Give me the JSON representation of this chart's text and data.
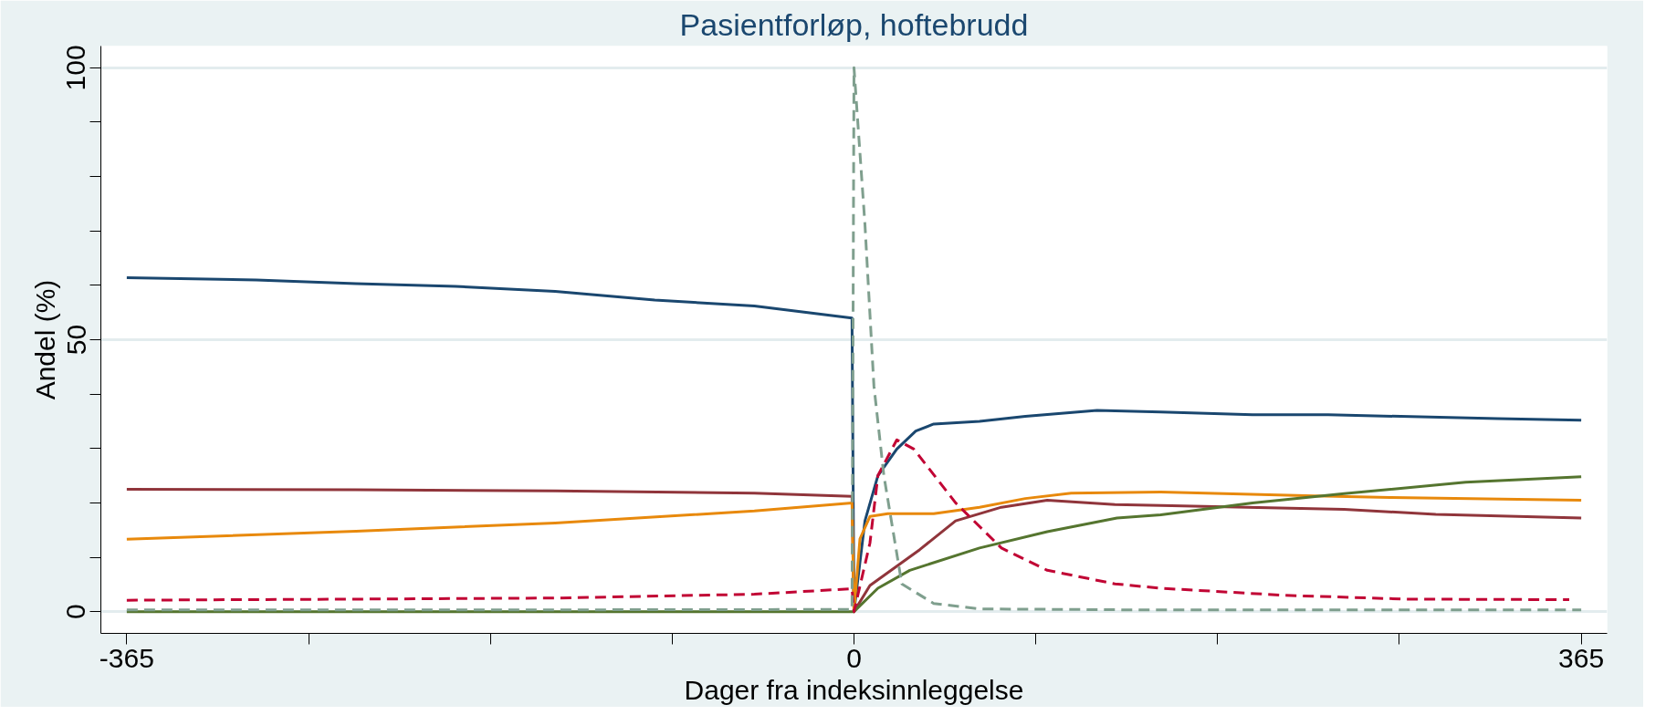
{
  "chart_data": {
    "type": "line",
    "title": "Pasientforløp, hoftebrudd",
    "xlabel": "Dager fra indeksinnleggelse",
    "ylabel": "Andel (%)",
    "xlim": [
      -378,
      378
    ],
    "ylim": [
      -4,
      104
    ],
    "xticks": [
      -365,
      {
        "value": -273.75,
        "label": null
      },
      {
        "value": -182.5,
        "label": null
      },
      {
        "value": -91.25,
        "label": null
      },
      0,
      {
        "value": 91.25,
        "label": null
      },
      {
        "value": 182.5,
        "label": null
      },
      {
        "value": 273.75,
        "label": null
      },
      365
    ],
    "yticks": [
      0,
      {
        "value": 10,
        "label": null
      },
      {
        "value": 20,
        "label": null
      },
      {
        "value": 30,
        "label": null
      },
      {
        "value": 40,
        "label": null
      },
      50,
      {
        "value": 60,
        "label": null
      },
      {
        "value": 70,
        "label": null
      },
      {
        "value": 80,
        "label": null
      },
      {
        "value": 90,
        "label": null
      },
      100
    ],
    "grid": "y",
    "marker": "none",
    "series": [
      {
        "color": "#1a476f",
        "line_style": "solid",
        "x": [
          -365,
          -300,
          -250,
          -200,
          -150,
          -100,
          -50,
          -1,
          0,
          5.5,
          12,
          21.5,
          31,
          40,
          63,
          86,
          122,
          154,
          200,
          238,
          323,
          365
        ],
        "values": [
          61.4,
          61,
          60.3,
          59.8,
          58.9,
          57.3,
          56.2,
          54,
          0,
          16.7,
          25,
          29.9,
          33.2,
          34.5,
          35,
          35.9,
          37,
          36.7,
          36.2,
          36.2,
          35.5,
          35.2
        ]
      },
      {
        "color": "#90353b",
        "line_style": "solid",
        "x": [
          -365,
          -250,
          -150,
          -50,
          -1,
          0,
          8,
          33,
          51,
          74,
          97,
          131,
          154,
          246,
          292,
          365
        ],
        "values": [
          22.5,
          22.4,
          22.2,
          21.8,
          21.2,
          0,
          4.8,
          11.4,
          16.7,
          19.2,
          20.5,
          19.7,
          19.5,
          18.8,
          17.9,
          17.2
        ]
      },
      {
        "color": "#e8890c",
        "line_style": "solid",
        "x": [
          -365,
          -250,
          -150,
          -50,
          -1,
          0,
          3,
          8,
          17,
          40,
          63,
          86,
          109,
          154,
          231,
          269,
          365
        ],
        "values": [
          13.3,
          14.8,
          16.3,
          18.5,
          20,
          0,
          13.4,
          17.5,
          18,
          18,
          19.2,
          20.8,
          21.8,
          22,
          21.3,
          21,
          20.5
        ]
      },
      {
        "color": "#55752f",
        "line_style": "solid",
        "x": [
          -365,
          -1,
          0,
          12,
          28,
          63,
          97,
          132,
          154,
          200,
          246,
          307,
          365
        ],
        "values": [
          0,
          0,
          0,
          4.3,
          7.6,
          11.7,
          14.7,
          17.2,
          17.8,
          20,
          21.7,
          23.8,
          24.8
        ]
      },
      {
        "color": "#c10534",
        "line_style": "dashed",
        "x": [
          -365,
          -250,
          -150,
          -50,
          -1,
          0,
          8,
          12,
          21.5,
          30,
          51,
          74,
          97,
          131,
          154,
          216,
          277,
          359
        ],
        "values": [
          2.1,
          2.3,
          2.5,
          3.2,
          4.2,
          0,
          12.6,
          25,
          31.6,
          29.9,
          20,
          11.7,
          7.6,
          5.1,
          4.3,
          3,
          2.3,
          2.2
        ]
      },
      {
        "color": "#7f9f8e",
        "line_style": "dashed",
        "x": [
          -365,
          -200,
          -1,
          0,
          5.5,
          10,
          15,
          24,
          40,
          63,
          150,
          250,
          365
        ],
        "values": [
          0.3,
          0.3,
          0.4,
          100,
          71.2,
          41.5,
          25,
          5.1,
          1.5,
          0.5,
          0.3,
          0.3,
          0.3
        ]
      }
    ]
  }
}
